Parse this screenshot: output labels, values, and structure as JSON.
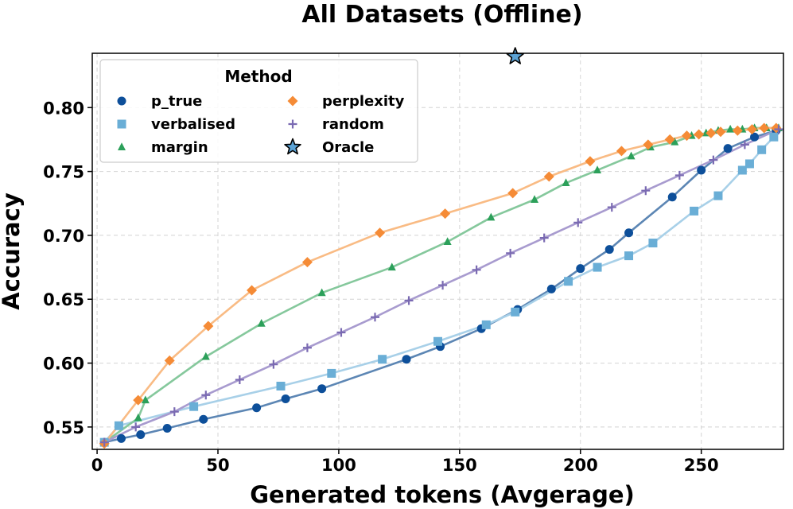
{
  "chart_data": {
    "type": "line",
    "title": "All Datasets (Offline)",
    "xlabel": "Generated tokens (Avgerage)",
    "ylabel": "Accuracy",
    "xlim": [
      -2,
      284
    ],
    "ylim": [
      0.5325,
      0.8425
    ],
    "xticks": [
      0,
      50,
      100,
      150,
      200,
      250
    ],
    "yticks": [
      0.55,
      0.6,
      0.65,
      0.7,
      0.75,
      0.8
    ],
    "ytick_labels": [
      "0.55",
      "0.60",
      "0.65",
      "0.70",
      "0.75",
      "0.80"
    ],
    "grid": true,
    "legend_title": "Method",
    "legend_position": "top-left",
    "series": [
      {
        "name": "p_true",
        "marker": "circle",
        "color": "#0d4f9a",
        "line_color": "#5c86b4",
        "x": [
          3,
          10,
          18,
          29,
          44,
          66,
          78,
          93,
          128,
          142,
          159,
          174,
          188,
          200,
          212,
          220,
          238,
          250,
          261,
          272,
          281
        ],
        "y": [
          0.538,
          0.541,
          0.544,
          0.549,
          0.556,
          0.565,
          0.572,
          0.58,
          0.603,
          0.613,
          0.627,
          0.642,
          0.658,
          0.674,
          0.689,
          0.702,
          0.73,
          0.751,
          0.768,
          0.777,
          0.782
        ]
      },
      {
        "name": "verbalised",
        "marker": "square",
        "color": "#6aaed6",
        "line_color": "#a8d0e8",
        "x": [
          3,
          9,
          40,
          76,
          97,
          118,
          141,
          161,
          173,
          195,
          207,
          220,
          230,
          247,
          257,
          267,
          270,
          275,
          280
        ],
        "y": [
          0.538,
          0.551,
          0.566,
          0.582,
          0.592,
          0.603,
          0.617,
          0.63,
          0.64,
          0.664,
          0.675,
          0.684,
          0.694,
          0.719,
          0.731,
          0.751,
          0.756,
          0.767,
          0.777
        ]
      },
      {
        "name": "margin",
        "marker": "triangle",
        "color": "#2ca05a",
        "line_color": "#85c89c",
        "x": [
          3,
          17,
          20,
          45,
          68,
          93,
          122,
          145,
          163,
          181,
          194,
          207,
          221,
          229,
          239,
          246,
          252,
          257,
          262,
          267,
          272,
          277,
          282
        ],
        "y": [
          0.538,
          0.557,
          0.571,
          0.605,
          0.631,
          0.655,
          0.675,
          0.695,
          0.714,
          0.728,
          0.741,
          0.751,
          0.762,
          0.769,
          0.773,
          0.778,
          0.78,
          0.782,
          0.783,
          0.783,
          0.784,
          0.784,
          0.784
        ]
      },
      {
        "name": "perplexity",
        "marker": "diamond",
        "color": "#f58b36",
        "line_color": "#f9bb84",
        "x": [
          3,
          17,
          30,
          46,
          64,
          87,
          117,
          144,
          172,
          187,
          204,
          217,
          228,
          237,
          244,
          249,
          254,
          258,
          265,
          271,
          276,
          281
        ],
        "y": [
          0.537,
          0.571,
          0.602,
          0.629,
          0.657,
          0.679,
          0.702,
          0.717,
          0.733,
          0.746,
          0.758,
          0.766,
          0.771,
          0.775,
          0.778,
          0.779,
          0.78,
          0.781,
          0.782,
          0.783,
          0.784,
          0.784
        ]
      },
      {
        "name": "random",
        "marker": "plus",
        "color": "#7a6ab2",
        "line_color": "#a89bcf",
        "x": [
          3,
          16,
          32,
          45,
          59,
          73,
          87,
          101,
          115,
          129,
          143,
          157,
          171,
          185,
          199,
          213,
          227,
          241,
          255,
          268,
          282
        ],
        "y": [
          0.538,
          0.55,
          0.562,
          0.575,
          0.587,
          0.599,
          0.612,
          0.624,
          0.636,
          0.649,
          0.661,
          0.673,
          0.686,
          0.698,
          0.71,
          0.722,
          0.735,
          0.747,
          0.759,
          0.771,
          0.783
        ]
      }
    ],
    "oracle": {
      "name": "Oracle",
      "marker": "star",
      "color": "#5ba3d6",
      "x": 173,
      "y": 0.84
    }
  }
}
